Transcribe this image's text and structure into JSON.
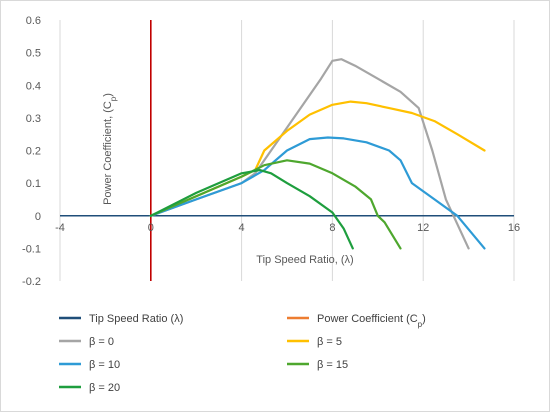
{
  "chart_data": {
    "type": "line",
    "title": "",
    "xlabel": "Tip Speed Ratio, (λ)",
    "ylabel": "Power Coefficient, (Cp)",
    "xlim": [
      -4,
      16
    ],
    "ylim": [
      -0.2,
      0.6
    ],
    "x_ticks": [
      "-4",
      "0",
      "4",
      "8",
      "12",
      "16"
    ],
    "y_ticks": [
      "-0.2",
      "-0.1",
      "0",
      "0.1",
      "0.2",
      "0.3",
      "0.4",
      "0.5",
      "0.6"
    ],
    "x_tick_values": [
      -4,
      0,
      4,
      8,
      12,
      16
    ],
    "y_tick_values": [
      -0.2,
      -0.1,
      0,
      0.1,
      0.2,
      0.3,
      0.4,
      0.5,
      0.6
    ],
    "grid": "vertical",
    "legend_position": "bottom",
    "axis_series": [
      {
        "name": "Tip Speed Ratio (λ)",
        "color": "#1f4e79",
        "axis": "x"
      },
      {
        "name": "Power Coefficient (Cp)",
        "color": "#ed7d31",
        "axis": "y"
      }
    ],
    "series": [
      {
        "name": "β = 0",
        "color": "#a5a5a5",
        "x": [
          0,
          2,
          4,
          4.6,
          5.5,
          6.5,
          7.5,
          8,
          8.4,
          9,
          10,
          11,
          11.8,
          12.4,
          13,
          14
        ],
        "y": [
          0,
          0.05,
          0.1,
          0.13,
          0.22,
          0.32,
          0.42,
          0.475,
          0.48,
          0.46,
          0.42,
          0.38,
          0.33,
          0.2,
          0.05,
          -0.1
        ]
      },
      {
        "name": "β = 5",
        "color": "#ffc000",
        "x": [
          0,
          2,
          4,
          4.6,
          5,
          6,
          7,
          8,
          8.8,
          9.5,
          10.5,
          11.5,
          12.5,
          13.5,
          14.7
        ],
        "y": [
          0,
          0.06,
          0.12,
          0.14,
          0.2,
          0.26,
          0.31,
          0.34,
          0.35,
          0.345,
          0.33,
          0.315,
          0.29,
          0.25,
          0.2
        ]
      },
      {
        "name": "β = 10",
        "color": "#2e9bd6",
        "x": [
          0,
          2,
          4,
          5,
          6,
          7,
          7.8,
          8.5,
          9.5,
          10.5,
          11,
          11.5,
          12.5,
          13.5,
          14.7
        ],
        "y": [
          0,
          0.05,
          0.1,
          0.14,
          0.2,
          0.235,
          0.24,
          0.237,
          0.225,
          0.2,
          0.17,
          0.1,
          0.05,
          0,
          -0.1
        ]
      },
      {
        "name": "β = 15",
        "color": "#4ea72e",
        "x": [
          0,
          2,
          4,
          5,
          6,
          7,
          8,
          9,
          9.7,
          10,
          10.3,
          11
        ],
        "y": [
          0,
          0.06,
          0.12,
          0.155,
          0.17,
          0.16,
          0.13,
          0.09,
          0.05,
          0,
          -0.02,
          -0.1
        ]
      },
      {
        "name": "β = 20",
        "color": "#1e9e3e",
        "x": [
          0,
          2,
          4,
          4.8,
          5.3,
          6,
          7,
          8,
          8.5,
          8.9
        ],
        "y": [
          0,
          0.07,
          0.13,
          0.14,
          0.13,
          0.1,
          0.06,
          0.01,
          -0.04,
          -0.1
        ]
      }
    ]
  }
}
